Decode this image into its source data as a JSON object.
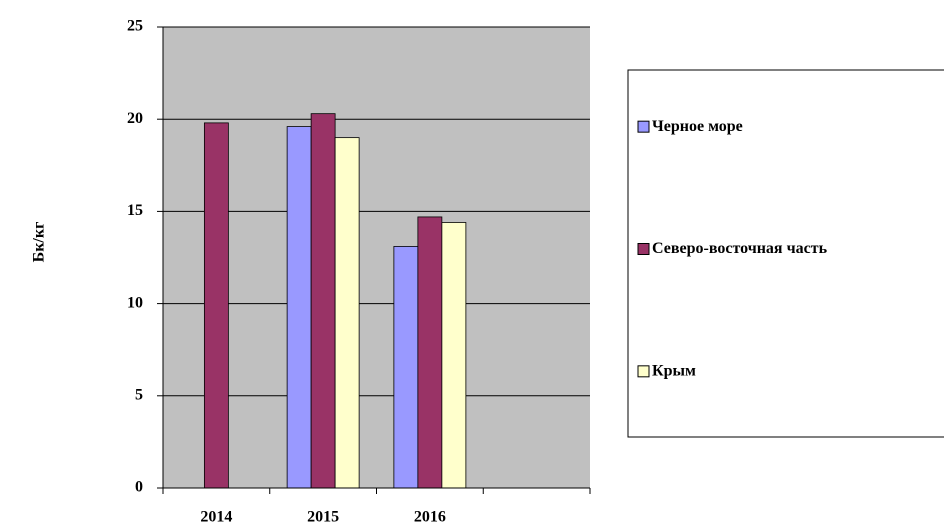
{
  "chart_data": {
    "type": "bar",
    "y_label": "Бк/кг",
    "categories": [
      "2014",
      "2015",
      "2016",
      null
    ],
    "series": [
      {
        "name": "Черное море",
        "color": "#9999ff",
        "values": [
          null,
          19.6,
          13.1,
          null
        ]
      },
      {
        "name": "Северо-восточная часть",
        "color": "#993366",
        "values": [
          19.8,
          20.3,
          14.7,
          null
        ]
      },
      {
        "name": "Крым",
        "color": "#ffffcc",
        "values": [
          null,
          19.0,
          14.4,
          null
        ]
      }
    ],
    "ylim": [
      0,
      25
    ],
    "yticks": [
      0,
      5,
      10,
      15,
      20,
      25
    ],
    "grid": true,
    "legend": "right",
    "plot_background": "#c0c0c0"
  }
}
